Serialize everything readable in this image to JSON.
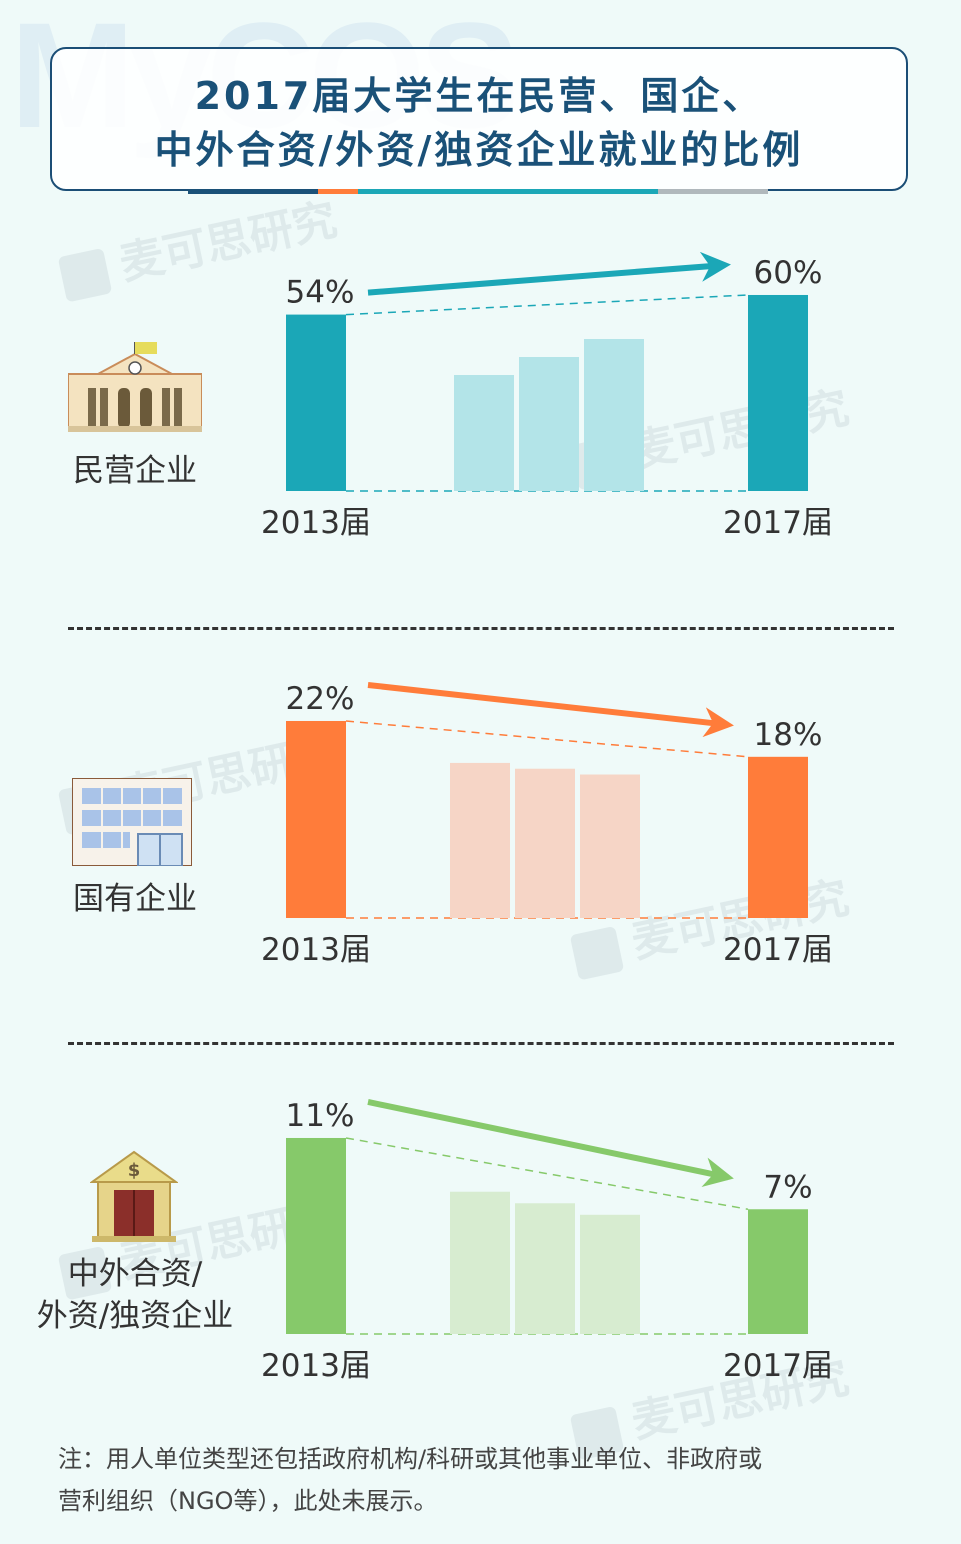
{
  "page": {
    "title_line1": "2017届大学生在民营、国企、",
    "title_line2": "中外合资/外资/独资企业就业的比例",
    "watermark_logo": "MyCOS",
    "watermark_text": "麦可思研究",
    "note_line1": "注：用人单位类型还包括政府机构/科研或其他事业单位、非政府或",
    "note_line2": "营利组织（NGO等），此处未展示。"
  },
  "colors": {
    "title": "#1a5178",
    "private": "#1ba7b7",
    "private_light": "#b3e4e8",
    "state": "#ff7c3a",
    "state_light": "#f6d5c6",
    "foreign": "#86c96a",
    "foreign_light": "#d7ecd0",
    "underline": [
      "#1a5178",
      "#ff7c3a",
      "#1ba7b7",
      "#b0b8bc"
    ]
  },
  "icons": [
    "government-building-icon",
    "office-building-icon",
    "bank-icon"
  ],
  "chart_data": [
    {
      "type": "bar",
      "name": "民营企业",
      "categories": [
        "2013届",
        "2017届"
      ],
      "values": [
        54,
        60
      ],
      "value_labels": [
        "54%",
        "60%"
      ],
      "trend": "up",
      "intermediate_bars": 3
    },
    {
      "type": "bar",
      "name": "国有企业",
      "categories": [
        "2013届",
        "2017届"
      ],
      "values": [
        22,
        18
      ],
      "value_labels": [
        "22%",
        "18%"
      ],
      "trend": "down",
      "intermediate_bars": 3
    },
    {
      "type": "bar",
      "name": "中外合资/外资/独资企业",
      "name_lines": [
        "中外合资/",
        "外资/独资企业"
      ],
      "categories": [
        "2013届",
        "2017届"
      ],
      "values": [
        11,
        7
      ],
      "value_labels": [
        "11%",
        "7%"
      ],
      "trend": "down",
      "intermediate_bars": 3
    }
  ]
}
